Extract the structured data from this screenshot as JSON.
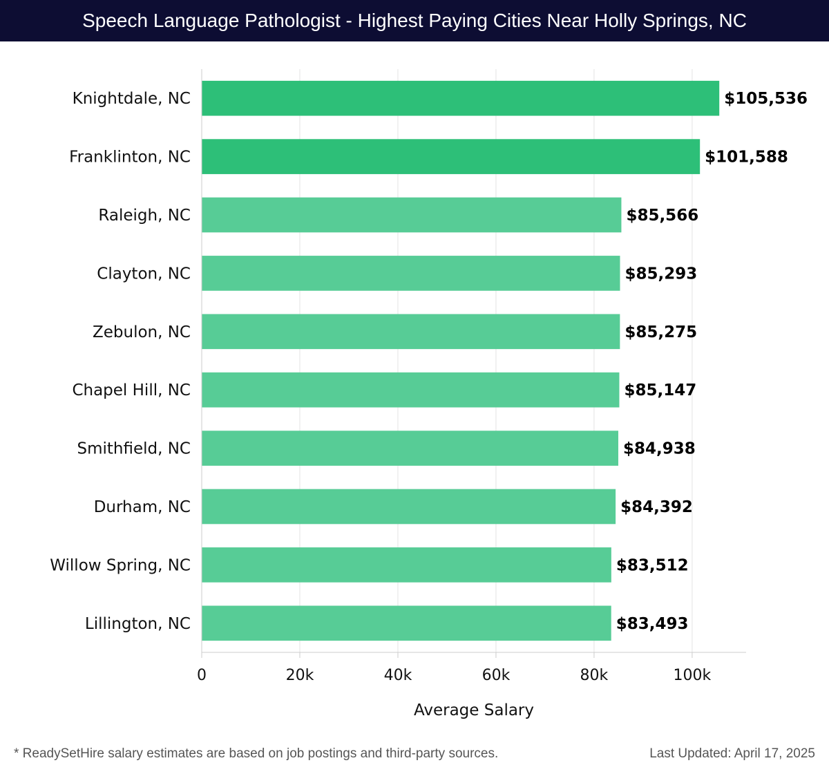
{
  "header": {
    "title": "Speech Language Pathologist - Highest Paying Cities Near Holly Springs, NC"
  },
  "chart_data": {
    "type": "bar",
    "orientation": "horizontal",
    "categories": [
      "Knightdale, NC",
      "Franklinton, NC",
      "Raleigh, NC",
      "Clayton, NC",
      "Zebulon, NC",
      "Chapel Hill, NC",
      "Smithfield, NC",
      "Durham, NC",
      "Willow Spring, NC",
      "Lillington, NC"
    ],
    "values": [
      105536,
      101588,
      85566,
      85293,
      85275,
      85147,
      84938,
      84392,
      83512,
      83493
    ],
    "value_labels": [
      "$105,536",
      "$101,588",
      "$85,566",
      "$85,293",
      "$85,275",
      "$85,147",
      "$84,938",
      "$84,392",
      "$83,512",
      "$83,493"
    ],
    "xlabel": "Average Salary",
    "ylabel": "",
    "xlim": [
      0,
      111000
    ],
    "xticks": [
      0,
      20000,
      40000,
      60000,
      80000,
      100000
    ],
    "xtick_labels": [
      "0",
      "20k",
      "40k",
      "60k",
      "80k",
      "100k"
    ],
    "grid": true,
    "colors": {
      "highlight": "#2dbf78",
      "default": "#57cc96",
      "grid": "#e3e3e3",
      "axis": "#cccccc"
    },
    "highlight_count": 2
  },
  "footer": {
    "note": "* ReadySetHire salary estimates are based on job postings and third-party sources.",
    "updated": "Last Updated: April 17, 2025"
  }
}
